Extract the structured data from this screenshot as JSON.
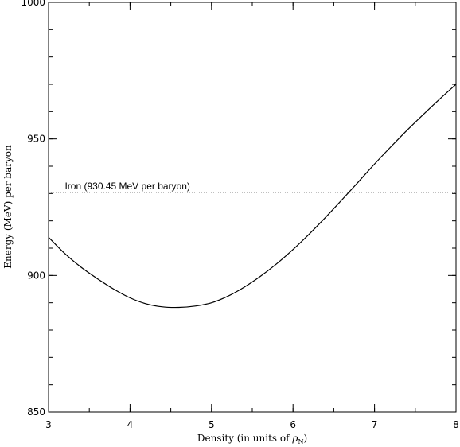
{
  "chart_data": {
    "type": "line",
    "title": "",
    "xlabel": "Density (in units of ",
    "xlabel_symbol": "ρ",
    "xlabel_subscript": "N",
    "xlabel_suffix": ")",
    "ylabel": "Energy (MeV) per baryon",
    "xlim": [
      3,
      8
    ],
    "ylim": [
      850,
      1000
    ],
    "xticks": [
      3,
      4,
      5,
      6,
      7,
      8
    ],
    "yticks": [
      850,
      900,
      950,
      1000
    ],
    "x_minor_step": 0.5,
    "y_minor_step": 10,
    "grid": false,
    "series": [
      {
        "style": "solid",
        "x": [
          3.0,
          3.2,
          3.4,
          3.6,
          3.8,
          4.0,
          4.2,
          4.4,
          4.6,
          4.8,
          5.0,
          5.2,
          5.4,
          5.6,
          5.8,
          6.0,
          6.2,
          6.4,
          6.6,
          6.8,
          7.0,
          7.2,
          7.4,
          7.6,
          7.8,
          8.0
        ],
        "y": [
          914.0,
          908.0,
          903.0,
          898.8,
          895.0,
          891.8,
          889.6,
          888.5,
          888.3,
          888.8,
          890.0,
          892.4,
          895.7,
          899.7,
          904.3,
          909.5,
          915.2,
          921.3,
          927.7,
          934.2,
          940.8,
          947.1,
          953.2,
          959.0,
          964.6,
          970.0
        ]
      }
    ],
    "reference_line": {
      "y": 930.45,
      "x_start": 3.0,
      "x_end": 8.0,
      "style": "dotted",
      "label": "Iron (930.45 MeV per baryon)"
    }
  }
}
